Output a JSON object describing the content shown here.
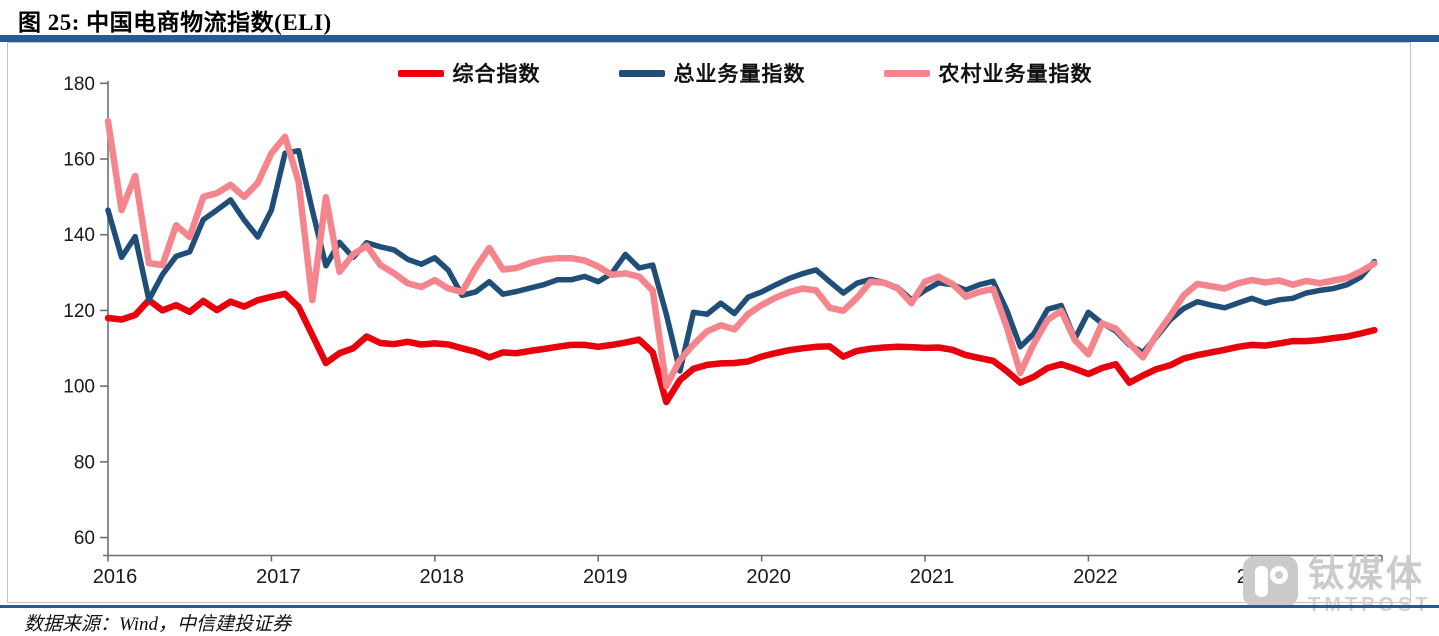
{
  "header": {
    "title": "图 25: 中国电商物流指数(ELI)",
    "source_note": "数据来源：Wind，中信建投证券"
  },
  "watermark": {
    "cn": "钛媒体",
    "en": "TMTPOST"
  },
  "colors": {
    "title_rule": "#1f5c99",
    "bottom_rule": "#1f5c99",
    "axis": "#6f6f6f",
    "tick_text": "#1a1a1a",
    "frame": "#c3c3c3",
    "watermark": "#cbcbcb",
    "composite": "#e8000d",
    "total_volume": "#1f4e79",
    "rural_volume": "#f5858d"
  },
  "chart_data": {
    "type": "line",
    "title": "中国电商物流指数(ELI)",
    "frequency": "monthly",
    "x_start": "2016-01",
    "x_end": "2023-10",
    "x_tick_labels": [
      "2016",
      "2017",
      "2018",
      "2019",
      "2020",
      "2021",
      "2022",
      "2023"
    ],
    "y_ticks": [
      180,
      160,
      140,
      120,
      100,
      80,
      60
    ],
    "ylim": [
      55,
      182
    ],
    "grid": false,
    "legend_position": "top-center",
    "series": [
      {
        "name": "综合指数",
        "color": "#e8000d",
        "values": [
          118.0,
          117.6,
          118.8,
          122.7,
          120.0,
          121.4,
          119.6,
          122.5,
          120.1,
          122.3,
          121.0,
          122.7,
          123.6,
          124.4,
          120.9,
          113.5,
          106.1,
          108.7,
          110.0,
          113.1,
          111.4,
          111.1,
          111.7,
          111.0,
          111.3,
          111.0,
          110.0,
          109.1,
          107.6,
          108.9,
          108.7,
          109.3,
          109.8,
          110.4,
          110.9,
          110.9,
          110.4,
          110.9,
          111.5,
          112.3,
          108.9,
          95.8,
          101.6,
          104.6,
          105.6,
          106.0,
          106.1,
          106.5,
          107.8,
          108.7,
          109.5,
          110.0,
          110.4,
          110.5,
          107.8,
          109.3,
          109.9,
          110.2,
          110.4,
          110.3,
          110.1,
          110.2,
          109.6,
          108.2,
          107.4,
          106.7,
          104.0,
          100.9,
          102.5,
          104.8,
          105.8,
          104.6,
          103.2,
          104.8,
          105.8,
          100.9,
          102.8,
          104.5,
          105.5,
          107.3,
          108.2,
          108.9,
          109.6,
          110.4,
          110.9,
          110.7,
          111.3,
          111.9,
          111.9,
          112.2,
          112.7,
          113.1,
          113.9,
          114.8
        ]
      },
      {
        "name": "总业务量指数",
        "color": "#1f4e79",
        "values": [
          146.5,
          134.0,
          139.5,
          122.8,
          129.5,
          134.3,
          135.5,
          144.0,
          146.5,
          149.2,
          143.9,
          139.4,
          146.5,
          161.5,
          162.2,
          146.5,
          131.8,
          138.0,
          134.0,
          137.9,
          136.8,
          136.0,
          133.5,
          132.2,
          133.9,
          130.6,
          124.0,
          124.9,
          127.6,
          124.3,
          125.0,
          125.9,
          126.8,
          128.1,
          128.1,
          129.0,
          127.6,
          129.8,
          134.8,
          131.2,
          132.0,
          119.0,
          104.0,
          119.5,
          119.0,
          121.9,
          119.2,
          123.5,
          124.9,
          126.7,
          128.4,
          129.7,
          130.7,
          127.6,
          124.6,
          127.2,
          128.2,
          127.4,
          126.0,
          122.8,
          125.3,
          127.3,
          126.8,
          125.4,
          126.8,
          127.7,
          120.1,
          110.4,
          113.9,
          120.3,
          121.3,
          112.5,
          119.5,
          116.6,
          114.6,
          110.9,
          108.9,
          113.0,
          117.5,
          120.5,
          122.3,
          121.4,
          120.7,
          122.0,
          123.2,
          121.9,
          122.8,
          123.2,
          124.6,
          125.3,
          125.8,
          126.8,
          128.8,
          132.9
        ]
      },
      {
        "name": "农村业务量指数",
        "color": "#f5858d",
        "values": [
          170.0,
          146.5,
          155.5,
          132.5,
          132.0,
          142.5,
          139.4,
          150.0,
          151.0,
          153.2,
          150.0,
          153.7,
          161.5,
          165.9,
          154.0,
          122.7,
          149.9,
          130.2,
          134.8,
          137.1,
          132.0,
          129.8,
          127.2,
          126.2,
          128.0,
          125.8,
          124.9,
          131.2,
          136.5,
          130.8,
          131.2,
          132.5,
          133.4,
          133.8,
          133.8,
          133.2,
          131.6,
          129.4,
          129.8,
          128.9,
          125.3,
          100.0,
          106.9,
          111.0,
          114.5,
          116.1,
          115.0,
          119.0,
          121.4,
          123.3,
          124.8,
          125.8,
          125.3,
          120.7,
          119.9,
          123.3,
          127.6,
          127.3,
          125.8,
          121.9,
          127.6,
          128.9,
          127.0,
          123.6,
          124.9,
          125.7,
          115.7,
          103.5,
          111.3,
          117.5,
          119.9,
          112.2,
          108.4,
          116.6,
          115.2,
          111.3,
          107.6,
          113.5,
          118.5,
          124.0,
          127.0,
          126.4,
          125.8,
          127.2,
          128.0,
          127.4,
          127.9,
          126.8,
          127.8,
          127.2,
          127.9,
          128.6,
          130.3,
          132.4
        ]
      }
    ]
  }
}
